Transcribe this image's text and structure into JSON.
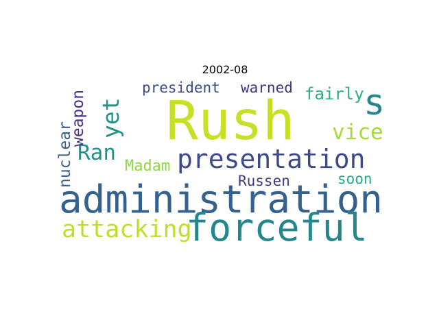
{
  "title": "2002-08",
  "words": {
    "rush": {
      "text": "Rush",
      "color": "#c8df27"
    },
    "administration": {
      "text": "administration",
      "color": "#34618d"
    },
    "forceful": {
      "text": "forceful",
      "color": "#23878d"
    },
    "presentation": {
      "text": "presentation",
      "color": "#3e4989"
    },
    "s": {
      "text": "s",
      "color": "#25858e"
    },
    "president": {
      "text": "president",
      "color": "#3e4989"
    },
    "warned": {
      "text": "warned",
      "color": "#46327e"
    },
    "fairly": {
      "text": "fairly",
      "color": "#2bb07f"
    },
    "yet": {
      "text": "yet",
      "color": "#21918c"
    },
    "vice": {
      "text": "vice",
      "color": "#a5db36"
    },
    "weapon": {
      "text": "weapon",
      "color": "#46337e"
    },
    "ran": {
      "text": "Ran",
      "color": "#21918c"
    },
    "nuclear": {
      "text": "nuclear",
      "color": "#3d5f8e"
    },
    "madam": {
      "text": "Madam",
      "color": "#8fd744"
    },
    "russen": {
      "text": "Russen",
      "color": "#48397f"
    },
    "soon": {
      "text": "soon",
      "color": "#25ab82"
    },
    "attacking": {
      "text": "attacking",
      "color": "#bede2a"
    }
  }
}
